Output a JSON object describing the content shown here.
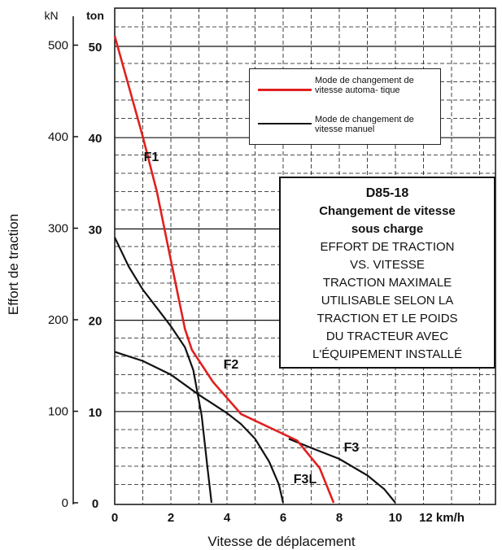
{
  "chart_data": {
    "type": "line",
    "xlabel": "Vitesse de déplacement",
    "ylabel": "Effort de traction",
    "x_unit": "12 km/h",
    "y_unit_left": "kN",
    "y_unit_right": "ton",
    "xlim": [
      0,
      12
    ],
    "ylim": [
      0,
      530
    ],
    "x_ticks": [
      "0",
      "2",
      "4",
      "6",
      "8",
      "10"
    ],
    "y_ticks_kN": [
      "0",
      "100",
      "200",
      "300",
      "400",
      "500"
    ],
    "y_ticks_ton": [
      "0",
      "10",
      "20",
      "30",
      "40",
      "50"
    ],
    "grid": true,
    "legend_position": "top-right",
    "series": [
      {
        "name": "Mode de changement de vitesse automa- tique",
        "color": "#e0201f",
        "points": [
          [
            0,
            510
          ],
          [
            0.5,
            455
          ],
          [
            1,
            400
          ],
          [
            1.5,
            340
          ],
          [
            2,
            265
          ],
          [
            2.5,
            190
          ],
          [
            2.75,
            167
          ],
          [
            3.5,
            132
          ],
          [
            4.5,
            97
          ],
          [
            6.5,
            68
          ],
          [
            7.3,
            38
          ],
          [
            7.8,
            0
          ]
        ]
      },
      {
        "name": "Mode de changement de vitesse manuel",
        "color": "#111111",
        "curves": [
          {
            "label": "F1",
            "points": [
              [
                0,
                290
              ],
              [
                0.5,
                258
              ],
              [
                1,
                233
              ],
              [
                1.5,
                213
              ],
              [
                2,
                193
              ],
              [
                2.5,
                170
              ],
              [
                2.8,
                145
              ],
              [
                3.1,
                95
              ],
              [
                3.3,
                40
              ],
              [
                3.45,
                0
              ]
            ]
          },
          {
            "label": "F2",
            "points": [
              [
                0,
                165
              ],
              [
                1,
                155
              ],
              [
                2,
                140
              ],
              [
                3,
                118
              ],
              [
                4,
                98
              ],
              [
                4.5,
                86
              ],
              [
                5,
                70
              ],
              [
                5.5,
                45
              ],
              [
                5.85,
                20
              ],
              [
                6,
                0
              ]
            ]
          },
          {
            "label": "F3",
            "points": [
              [
                6.2,
                70
              ],
              [
                7,
                60
              ],
              [
                8,
                48
              ],
              [
                9,
                30
              ],
              [
                9.6,
                15
              ],
              [
                10,
                0
              ]
            ]
          }
        ]
      }
    ],
    "annotations": [
      "F1",
      "F2",
      "F3",
      "F3L"
    ]
  },
  "legend": {
    "auto": "Mode de changement de vitesse automa- tique",
    "manual": "Mode de changement de vitesse manuel"
  },
  "note": {
    "model": "D85-18",
    "subtitle_l1": "Changement de vitesse",
    "subtitle_l2": "sous charge",
    "lines": [
      "EFFORT DE TRACTION",
      "VS. VITESSE",
      "TRACTION MAXIMALE",
      "UTILISABLE SELON LA",
      "TRACTION ET LE POIDS",
      "DU TRACTEUR AVEC",
      "L'ÉQUIPEMENT INSTALLÉ"
    ]
  }
}
